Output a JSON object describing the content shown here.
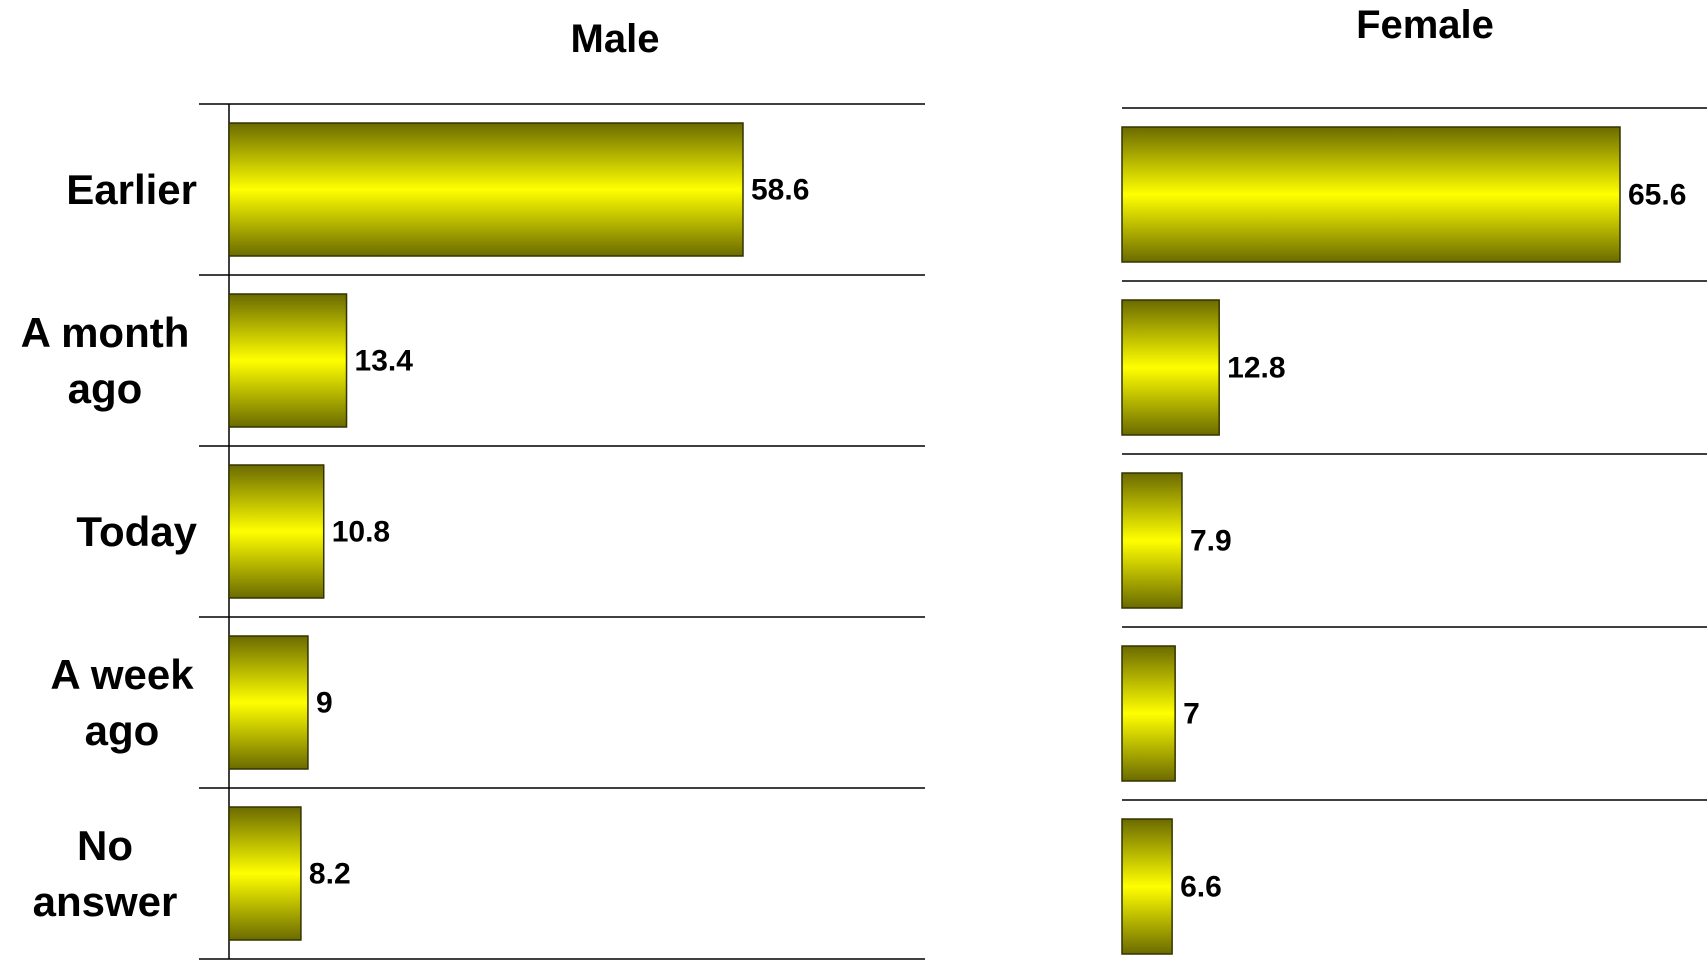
{
  "chart_data": [
    {
      "type": "bar",
      "orientation": "horizontal",
      "title": "Male",
      "categories": [
        "Earlier",
        "A month ago",
        "Today",
        "A week ago",
        "No answer"
      ],
      "values": [
        58.6,
        13.4,
        10.8,
        9,
        8.2
      ],
      "value_labels": [
        "58.6",
        "13.4",
        "10.8",
        "9",
        "8.2"
      ],
      "xlim": [
        0,
        80
      ],
      "grid": "horizontal separators",
      "legend": "none"
    },
    {
      "type": "bar",
      "orientation": "horizontal",
      "title": "Female",
      "categories": [
        "Earlier",
        "A month ago",
        "Today",
        "A week ago",
        "No answer"
      ],
      "values": [
        65.6,
        12.8,
        7.9,
        7,
        6.6
      ],
      "value_labels": [
        "65.6",
        "12.8",
        "7.9",
        "7",
        "6.6"
      ],
      "xlim": [
        0,
        80
      ],
      "grid": "horizontal separators",
      "legend": "none"
    }
  ],
  "category_labels": [
    [
      "Earlier"
    ],
    [
      "A month",
      "ago"
    ],
    [
      "Today"
    ],
    [
      "A week",
      "ago"
    ],
    [
      "No",
      "answer"
    ]
  ],
  "colors": {
    "bar_center": "#ffff00",
    "bar_edge": "#6b6b00",
    "bar_stroke": "#333300",
    "axis": "#000000"
  }
}
